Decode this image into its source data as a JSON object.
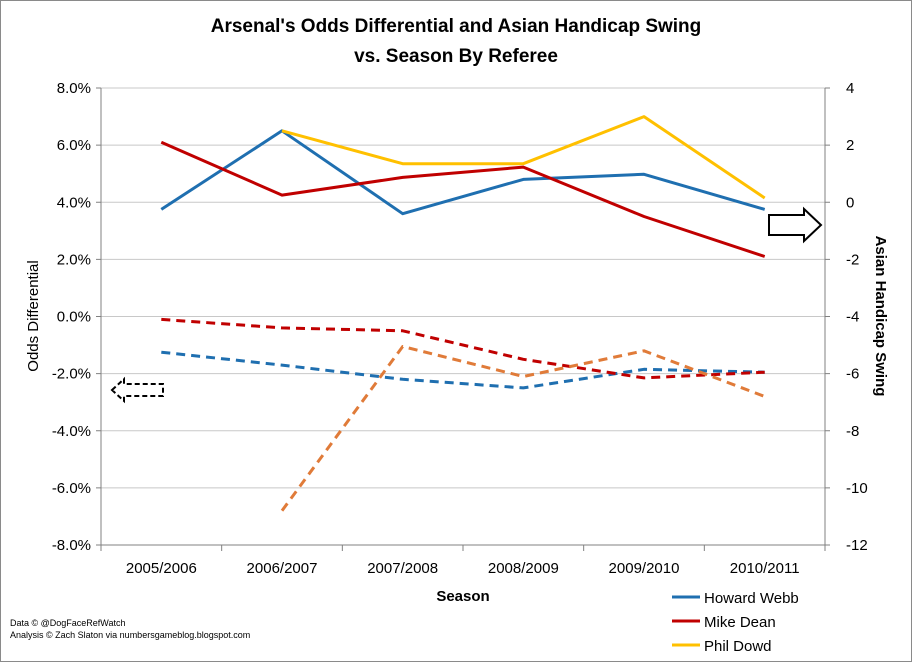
{
  "chart_data": {
    "type": "line",
    "title": "Arsenal's Odds Differential and Asian Handicap Swing",
    "subtitle": "vs. Season By Referee",
    "xlabel": "Season",
    "ylabel_left": "Odds Differential",
    "ylabel_right": "Asian Handicap Swing",
    "categories": [
      "2005/2006",
      "2006/2007",
      "2007/2008",
      "2008/2009",
      "2009/2010",
      "2010/2011"
    ],
    "y_left": {
      "min": -0.08,
      "max": 0.08,
      "step": 0.02,
      "tick_labels": [
        "8.0%",
        "6.0%",
        "4.0%",
        "2.0%",
        "0.0%",
        "-2.0%",
        "-4.0%",
        "-6.0%",
        "-8.0%"
      ]
    },
    "y_right": {
      "min": -12,
      "max": 4,
      "step": 2,
      "tick_labels": [
        "4",
        "2",
        "0",
        "-2",
        "-4",
        "-6",
        "-8",
        "-10",
        "-12"
      ]
    },
    "grid": "horizontal",
    "legend_position": "bottom-right",
    "series": [
      {
        "name": "Howard Webb",
        "color": "#1f6fb0",
        "axis": "left",
        "style": "solid",
        "values": [
          0.0375,
          0.065,
          0.036,
          0.048,
          0.0498,
          0.0375
        ]
      },
      {
        "name": "Mike Dean",
        "color": "#c00000",
        "axis": "left",
        "style": "solid",
        "values": [
          0.061,
          0.0425,
          0.0487,
          0.0523,
          0.035,
          0.021
        ]
      },
      {
        "name": "Phil Dowd",
        "color": "#ffc000",
        "axis": "left",
        "style": "solid",
        "values": [
          null,
          0.065,
          0.0535,
          0.0535,
          0.07,
          0.0415
        ]
      },
      {
        "color": "#1f6fb0",
        "axis": "right",
        "style": "dashed",
        "values": [
          -5.25,
          -5.7,
          -6.2,
          -6.5,
          -5.85,
          -5.95
        ]
      },
      {
        "color": "#c00000",
        "axis": "right",
        "style": "dashed",
        "values": [
          -4.1,
          -4.4,
          -4.5,
          -5.5,
          -6.15,
          -5.95
        ]
      },
      {
        "color": "#e07b39",
        "axis": "right",
        "style": "dashed",
        "values": [
          null,
          -10.8,
          -5.05,
          -6.1,
          -5.2,
          -6.8
        ]
      }
    ],
    "annotations": [
      {
        "type": "arrow",
        "direction": "left",
        "style": "dashed",
        "refers_to": "left axis"
      },
      {
        "type": "arrow",
        "direction": "right",
        "style": "solid",
        "refers_to": "right axis"
      }
    ]
  },
  "credits": {
    "line1": "Data © @DogFaceRefWatch",
    "line2": "Analysis © Zach Slaton via numbersgameblog.blogspot.com"
  }
}
